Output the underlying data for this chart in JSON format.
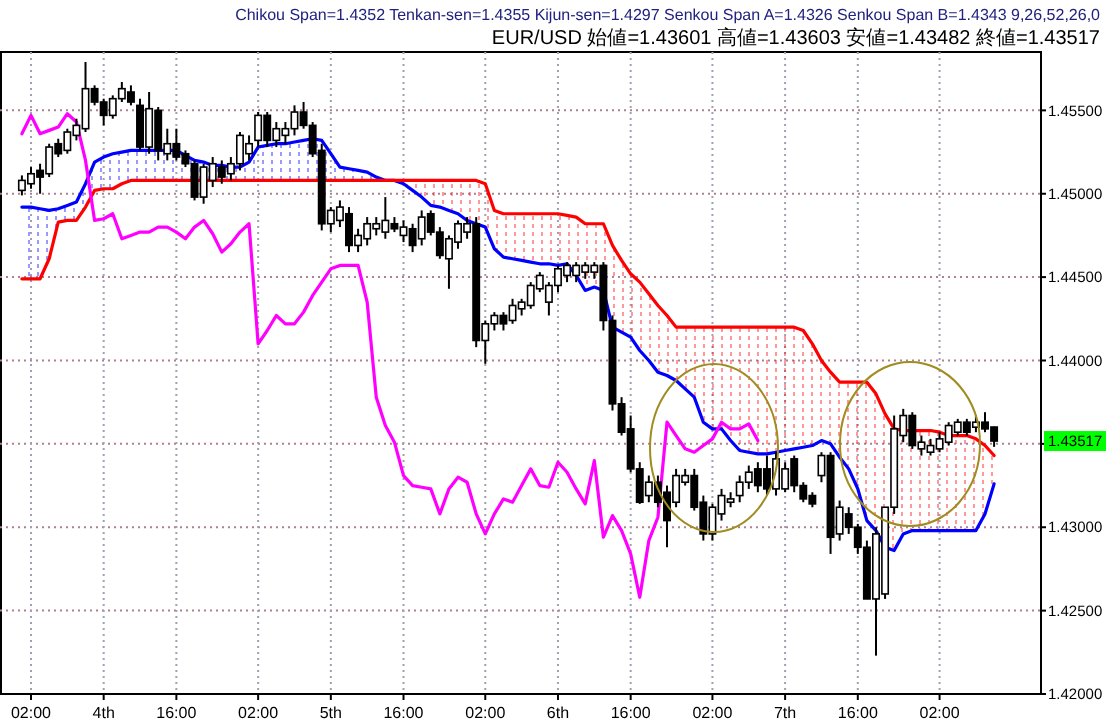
{
  "chart_data": {
    "type": "candlestick",
    "title": "Chikou Span=1.4352 Tenkan-sen=1.4355 Kijun-sen=1.4297 Senkou Span A=1.4326 Senkou Span B=1.4343 9,26,52,26,0",
    "subtitle": "EUR/USD 始値=1.43601 高値=1.43603 安値=1.43482 終値=1.43517",
    "categories": [
      null,
      "02:00",
      null,
      null,
      null,
      null,
      null,
      null,
      null,
      "4th",
      null,
      null,
      null,
      null,
      null,
      null,
      null,
      "16:00",
      null,
      null,
      null,
      null,
      null,
      null,
      null,
      null,
      "02:00",
      null,
      null,
      null,
      null,
      null,
      null,
      null,
      "5th",
      null,
      null,
      null,
      null,
      null,
      null,
      null,
      "16:00",
      null,
      null,
      null,
      null,
      null,
      null,
      null,
      null,
      "02:00",
      null,
      null,
      null,
      null,
      null,
      null,
      null,
      "6th",
      null,
      null,
      null,
      null,
      null,
      null,
      null,
      "16:00",
      null,
      null,
      null,
      null,
      null,
      null,
      null,
      null,
      "02:00",
      null,
      null,
      null,
      null,
      null,
      null,
      null,
      "7th",
      null,
      null,
      null,
      null,
      null,
      null,
      null,
      "16:00",
      null,
      null,
      null,
      null,
      null,
      null,
      null,
      null,
      "02:00",
      null,
      null,
      null,
      null,
      null,
      null
    ],
    "ohlc": [
      [
        1.4502,
        1.4511,
        1.4499,
        1.4508
      ],
      [
        1.4506,
        1.4516,
        1.4503,
        1.4512
      ],
      [
        1.4514,
        1.4518,
        1.45,
        1.451
      ],
      [
        1.4512,
        1.453,
        1.451,
        1.4528
      ],
      [
        1.453,
        1.4533,
        1.4522,
        1.4524
      ],
      [
        1.4526,
        1.4539,
        1.4524,
        1.4537
      ],
      [
        1.4535,
        1.4545,
        1.4532,
        1.4541
      ],
      [
        1.4539,
        1.4579,
        1.4537,
        1.4563
      ],
      [
        1.4563,
        1.4565,
        1.4553,
        1.4555
      ],
      [
        1.4555,
        1.4557,
        1.4541,
        1.4547
      ],
      [
        1.4547,
        1.4559,
        1.4545,
        1.4557
      ],
      [
        1.4557,
        1.4567,
        1.4555,
        1.4563
      ],
      [
        1.4561,
        1.4565,
        1.4553,
        1.4555
      ],
      [
        1.4553,
        1.4557,
        1.4526,
        1.4528
      ],
      [
        1.4528,
        1.4561,
        1.4524,
        1.4551
      ],
      [
        1.455,
        1.4552,
        1.452,
        1.4526
      ],
      [
        1.4524,
        1.4539,
        1.452,
        1.453
      ],
      [
        1.453,
        1.4539,
        1.452,
        1.4522
      ],
      [
        1.4524,
        1.4526,
        1.4516,
        1.4518
      ],
      [
        1.4518,
        1.452,
        1.4496,
        1.4498
      ],
      [
        1.4498,
        1.4518,
        1.4494,
        1.4516
      ],
      [
        1.4508,
        1.4522,
        1.4504,
        1.4518
      ],
      [
        1.4516,
        1.452,
        1.4506,
        1.451
      ],
      [
        1.4512,
        1.4522,
        1.4508,
        1.4518
      ],
      [
        1.4518,
        1.4537,
        1.4514,
        1.4535
      ],
      [
        1.4524,
        1.4535,
        1.452,
        1.453
      ],
      [
        1.4532,
        1.4549,
        1.4528,
        1.4547
      ],
      [
        1.4547,
        1.4549,
        1.4528,
        1.4532
      ],
      [
        1.4532,
        1.4543,
        1.4528,
        1.4539
      ],
      [
        1.4535,
        1.4543,
        1.453,
        1.4539
      ],
      [
        1.4539,
        1.4553,
        1.4535,
        1.4549
      ],
      [
        1.4549,
        1.4555,
        1.4539,
        1.4541
      ],
      [
        1.4541,
        1.4543,
        1.4522,
        1.4524
      ],
      [
        1.4526,
        1.453,
        1.4478,
        1.4482
      ],
      [
        1.4482,
        1.4492,
        1.4477,
        1.449
      ],
      [
        1.4484,
        1.4496,
        1.448,
        1.4492
      ],
      [
        1.4488,
        1.4492,
        1.4465,
        1.4469
      ],
      [
        1.4469,
        1.4479,
        1.4465,
        1.4475
      ],
      [
        1.4473,
        1.4486,
        1.4469,
        1.4482
      ],
      [
        1.4479,
        1.4486,
        1.4475,
        1.4482
      ],
      [
        1.4477,
        1.4498,
        1.4473,
        1.4484
      ],
      [
        1.4482,
        1.4486,
        1.4477,
        1.4479
      ],
      [
        1.4475,
        1.4484,
        1.4471,
        1.448
      ],
      [
        1.4479,
        1.4482,
        1.4465,
        1.4469
      ],
      [
        1.4473,
        1.449,
        1.4469,
        1.4486
      ],
      [
        1.4488,
        1.449,
        1.4475,
        1.4477
      ],
      [
        1.4477,
        1.448,
        1.4461,
        1.4463
      ],
      [
        1.4461,
        1.4475,
        1.4443,
        1.4473
      ],
      [
        1.4471,
        1.4484,
        1.4467,
        1.4482
      ],
      [
        1.4477,
        1.4486,
        1.4473,
        1.4482
      ],
      [
        1.4482,
        1.4486,
        1.4408,
        1.4412
      ],
      [
        1.4412,
        1.4424,
        1.4398,
        1.4422
      ],
      [
        1.4422,
        1.4429,
        1.4418,
        1.4427
      ],
      [
        1.4427,
        1.4429,
        1.4418,
        1.4422
      ],
      [
        1.4424,
        1.4437,
        1.4422,
        1.4433
      ],
      [
        1.4431,
        1.4437,
        1.4427,
        1.4435
      ],
      [
        1.4433,
        1.4447,
        1.4431,
        1.4445
      ],
      [
        1.4443,
        1.4453,
        1.4441,
        1.4451
      ],
      [
        1.4435,
        1.4447,
        1.4427,
        1.4445
      ],
      [
        1.4445,
        1.4457,
        1.4441,
        1.4455
      ],
      [
        1.4451,
        1.4459,
        1.4447,
        1.4457
      ],
      [
        1.4451,
        1.4459,
        1.4447,
        1.4457
      ],
      [
        1.4453,
        1.4459,
        1.4449,
        1.4457
      ],
      [
        1.4453,
        1.4459,
        1.4449,
        1.4457
      ],
      [
        1.4457,
        1.4459,
        1.4418,
        1.4424
      ],
      [
        1.4424,
        1.4427,
        1.437,
        1.4374
      ],
      [
        1.4374,
        1.4378,
        1.4355,
        1.4357
      ],
      [
        1.4359,
        1.4367,
        1.4333,
        1.4335
      ],
      [
        1.4335,
        1.4339,
        1.4314,
        1.4315
      ],
      [
        1.4319,
        1.4331,
        1.4315,
        1.4327
      ],
      [
        1.4327,
        1.4331,
        1.4312,
        1.4315
      ],
      [
        1.4321,
        1.4325,
        1.4288,
        1.4304
      ],
      [
        1.4315,
        1.4335,
        1.4312,
        1.4331
      ],
      [
        1.4327,
        1.4335,
        1.4325,
        1.4331
      ],
      [
        1.4331,
        1.4335,
        1.431,
        1.4312
      ],
      [
        1.4315,
        1.4319,
        1.4292,
        1.4296
      ],
      [
        1.4296,
        1.4314,
        1.4292,
        1.4312
      ],
      [
        1.4308,
        1.4323,
        1.4304,
        1.4319
      ],
      [
        1.4315,
        1.4321,
        1.4312,
        1.4317
      ],
      [
        1.4319,
        1.4331,
        1.4315,
        1.4327
      ],
      [
        1.4327,
        1.4337,
        1.4323,
        1.4333
      ],
      [
        1.4335,
        1.4339,
        1.4321,
        1.4325
      ],
      [
        1.4335,
        1.4343,
        1.4319,
        1.4323
      ],
      [
        1.4323,
        1.4345,
        1.4319,
        1.4341
      ],
      [
        1.4323,
        1.4339,
        1.4321,
        1.4335
      ],
      [
        1.4341,
        1.4343,
        1.4321,
        1.4325
      ],
      [
        1.4325,
        1.4327,
        1.4315,
        1.4317
      ],
      [
        1.4319,
        1.4321,
        1.4312,
        1.4314
      ],
      [
        1.4331,
        1.4345,
        1.4327,
        1.4343
      ],
      [
        1.4343,
        1.4345,
        1.4284,
        1.4294
      ],
      [
        1.4296,
        1.4316,
        1.4292,
        1.4312
      ],
      [
        1.4308,
        1.4312,
        1.4296,
        1.43
      ],
      [
        1.43,
        1.4302,
        1.4284,
        1.4288
      ],
      [
        1.4288,
        1.4292,
        1.4257,
        1.4257
      ],
      [
        1.4257,
        1.43,
        1.4223,
        1.4296
      ],
      [
        1.426,
        1.4312,
        1.4257,
        1.4312
      ],
      [
        1.4312,
        1.4367,
        1.4308,
        1.4359
      ],
      [
        1.4355,
        1.4371,
        1.4351,
        1.4367
      ],
      [
        1.4367,
        1.4369,
        1.4347,
        1.4349
      ],
      [
        1.4347,
        1.4355,
        1.4343,
        1.4351
      ],
      [
        1.4345,
        1.4353,
        1.4343,
        1.4349
      ],
      [
        1.4347,
        1.4357,
        1.4345,
        1.4353
      ],
      [
        1.4351,
        1.4363,
        1.4349,
        1.4361
      ],
      [
        1.4357,
        1.4365,
        1.4355,
        1.4363
      ],
      [
        1.4363,
        1.4365,
        1.4355,
        1.4357
      ],
      [
        1.436,
        1.4367,
        1.4357,
        1.4363
      ],
      [
        1.4363,
        1.4369,
        1.4357,
        1.4359
      ],
      [
        1.43601,
        1.43603,
        1.43482,
        1.43517
      ]
    ],
    "series": [
      {
        "type": "line",
        "color": "#0000ff",
        "values": [
          1.4492,
          1.4492,
          1.4491,
          1.449,
          1.4491,
          1.4493,
          1.4495,
          1.4506,
          1.4519,
          1.4522,
          1.4524,
          1.4525,
          1.4526,
          1.4526,
          1.4526,
          1.4526,
          1.4526,
          1.4526,
          1.4523,
          1.452,
          1.4519,
          1.4517,
          1.4517,
          1.4516,
          1.4516,
          1.4519,
          1.4528,
          1.4529,
          1.453,
          1.453,
          1.4531,
          1.4532,
          1.4533,
          1.4532,
          1.4524,
          1.4516,
          1.4515,
          1.4514,
          1.4513,
          1.451,
          1.4508,
          1.4508,
          1.4506,
          1.4502,
          1.4498,
          1.4493,
          1.4492,
          1.449,
          1.4488,
          1.4484,
          1.4482,
          1.448,
          1.4467,
          1.4462,
          1.4461,
          1.446,
          1.4459,
          1.4458,
          1.4458,
          1.4457,
          1.4458,
          1.4451,
          1.4442,
          1.4444,
          1.4442,
          1.442,
          1.4417,
          1.4414,
          1.4406,
          1.44,
          1.4393,
          1.4391,
          1.4388,
          1.4383,
          1.4378,
          1.4363,
          1.4359,
          1.4359,
          1.4352,
          1.4346,
          1.4345,
          1.4344,
          1.4344,
          1.4345,
          1.4346,
          1.4347,
          1.4348,
          1.4349,
          1.4352,
          1.435,
          1.4342,
          1.4335,
          1.4323,
          1.4304,
          1.4298,
          1.4288,
          1.4286,
          1.4296,
          1.4298,
          1.4298,
          1.4298,
          1.4298,
          1.4298,
          1.4298,
          1.4298,
          1.4298,
          1.4308,
          1.4326
        ],
        "upper": [
          1.4492,
          1.4492,
          1.4491,
          1.449,
          1.4491,
          1.4493,
          1.4495,
          1.4506,
          1.4519,
          1.4522,
          1.4524,
          1.4525,
          1.4526,
          1.4526,
          1.4526,
          1.4526,
          1.4526,
          1.4526,
          1.4523,
          1.452,
          1.4519,
          1.4517,
          1.4517,
          1.4516,
          1.4516,
          1.4519,
          1.4528,
          1.4529,
          1.453,
          1.453,
          1.4531,
          1.4532,
          1.4533,
          1.4532,
          1.4524,
          1.4516,
          1.4515,
          1.4514,
          1.4513,
          1.451,
          1.4508,
          null,
          null,
          null,
          null,
          null,
          null,
          null,
          null,
          null,
          null,
          null,
          null,
          null,
          null,
          null,
          null,
          null,
          null,
          null,
          null,
          null,
          null,
          null,
          null,
          null,
          null,
          null,
          null,
          null,
          null,
          null,
          null,
          null,
          null,
          null,
          null,
          null,
          null,
          null,
          null,
          null,
          null,
          null,
          null,
          null,
          null,
          null,
          null,
          null,
          null,
          null,
          null,
          null,
          null,
          null,
          null,
          null,
          null,
          null,
          null,
          null,
          null,
          null,
          null,
          null,
          null,
          null
        ],
        "lower": [
          1.4449,
          1.4449,
          1.4449,
          1.4461,
          1.4483,
          1.4484,
          1.4484,
          1.4492,
          1.4502,
          1.4503,
          1.4503,
          1.4506,
          1.4508,
          1.4508,
          1.4508,
          1.4508,
          1.4508,
          1.4508,
          1.4508,
          1.4508,
          1.4508,
          1.4508,
          1.4508,
          1.4508,
          1.4508,
          1.4508,
          1.4508,
          1.4508,
          1.4508,
          1.4508,
          1.4508,
          1.4508,
          1.4508,
          1.4508,
          1.4508,
          1.4508,
          1.4508,
          1.4508,
          1.4508,
          1.4508,
          1.4508,
          null,
          null,
          null,
          null,
          null,
          null,
          null,
          null,
          null,
          null,
          null,
          null,
          null,
          null,
          null,
          null,
          null,
          null,
          null,
          null,
          null,
          null,
          null,
          null,
          null,
          null,
          null,
          null,
          null,
          null,
          null,
          null,
          null,
          null,
          null,
          null,
          null,
          null,
          null,
          null,
          null,
          null,
          null,
          null,
          null,
          null,
          null,
          null,
          null,
          null,
          null,
          null,
          null,
          null,
          null,
          null,
          null,
          null,
          null,
          null,
          null,
          null,
          null,
          null,
          null,
          null,
          null
        ]
      },
      {
        "type": "line",
        "color": "#ff0000",
        "values": [
          1.4449,
          1.4449,
          1.4449,
          1.4461,
          1.4483,
          1.4484,
          1.4484,
          1.4492,
          1.4502,
          1.4503,
          1.4503,
          1.4506,
          1.4508,
          1.4508,
          1.4508,
          1.4508,
          1.4508,
          1.4508,
          1.4508,
          1.4508,
          1.4508,
          1.4508,
          1.4508,
          1.4508,
          1.4508,
          1.4508,
          1.4508,
          1.4508,
          1.4508,
          1.4508,
          1.4508,
          1.4508,
          1.4508,
          1.4508,
          1.4508,
          1.4508,
          1.4508,
          1.4508,
          1.4508,
          1.4508,
          1.4508,
          1.4508,
          1.4508,
          1.4508,
          1.4508,
          1.4508,
          1.4508,
          1.4508,
          1.4508,
          1.4508,
          1.4508,
          1.4506,
          1.449,
          1.4488,
          1.4488,
          1.4488,
          1.4488,
          1.4488,
          1.4488,
          1.4488,
          1.4487,
          1.4486,
          1.4482,
          1.4482,
          1.4482,
          1.4469,
          1.446,
          1.4452,
          1.4447,
          1.444,
          1.4433,
          1.4427,
          1.442,
          1.442,
          1.442,
          1.442,
          1.442,
          1.442,
          1.442,
          1.442,
          1.442,
          1.442,
          1.442,
          1.442,
          1.442,
          1.442,
          1.4418,
          1.441,
          1.44,
          1.4393,
          1.4387,
          1.4387,
          1.4387,
          1.4387,
          1.438,
          1.4368,
          1.4359,
          1.4358,
          1.4358,
          1.4358,
          1.4358,
          1.4357,
          1.4355,
          1.4355,
          1.4355,
          1.4353,
          1.4349,
          1.4343
        ],
        "upper": [
          null,
          null,
          null,
          null,
          null,
          null,
          null,
          null,
          null,
          null,
          null,
          null,
          null,
          null,
          null,
          null,
          null,
          null,
          null,
          null,
          null,
          null,
          null,
          null,
          null,
          null,
          null,
          null,
          null,
          null,
          null,
          null,
          null,
          null,
          null,
          null,
          null,
          null,
          null,
          null,
          null,
          1.4508,
          1.4508,
          1.4508,
          1.4508,
          1.4508,
          1.4508,
          1.4508,
          1.4508,
          1.4508,
          1.4508,
          1.4506,
          1.449,
          1.4488,
          1.4488,
          1.4488,
          1.4488,
          1.4488,
          1.4488,
          1.4488,
          1.4487,
          1.4486,
          1.4482,
          1.4482,
          1.4482,
          1.4469,
          1.446,
          1.4452,
          1.4447,
          1.444,
          1.4433,
          1.4427,
          1.442,
          1.442,
          1.442,
          1.442,
          1.442,
          1.442,
          1.442,
          1.442,
          1.442,
          1.442,
          1.442,
          1.442,
          1.442,
          1.442,
          1.4418,
          1.441,
          1.44,
          1.4393,
          1.4387,
          1.4387,
          1.4387,
          1.4387,
          1.438,
          1.4368,
          1.4359,
          1.4358,
          1.4358,
          1.4358,
          1.4358,
          1.4357,
          1.4355,
          1.4355,
          1.4355,
          1.4353,
          1.4349,
          1.4343
        ],
        "lower": [
          null,
          null,
          null,
          null,
          null,
          null,
          null,
          null,
          null,
          null,
          null,
          null,
          null,
          null,
          null,
          null,
          null,
          null,
          null,
          null,
          null,
          null,
          null,
          null,
          null,
          null,
          null,
          null,
          null,
          null,
          null,
          null,
          null,
          null,
          null,
          null,
          null,
          null,
          null,
          null,
          null,
          1.4508,
          1.4506,
          1.4502,
          1.4498,
          1.4493,
          1.4492,
          1.449,
          1.4488,
          1.4484,
          1.4482,
          1.448,
          1.4467,
          1.4462,
          1.4461,
          1.446,
          1.4459,
          1.4458,
          1.4458,
          1.4457,
          1.4458,
          1.4451,
          1.4442,
          1.4444,
          1.4442,
          1.442,
          1.4417,
          1.4414,
          1.4406,
          1.44,
          1.4393,
          1.4391,
          1.4388,
          1.4383,
          1.4378,
          1.4363,
          1.4359,
          1.4359,
          1.4352,
          1.4346,
          1.4345,
          1.4344,
          1.4344,
          1.4345,
          1.4346,
          1.4347,
          1.4348,
          1.4349,
          1.4352,
          1.435,
          1.4342,
          1.4335,
          1.4323,
          1.4304,
          1.4298,
          1.4288,
          1.4286,
          1.4296,
          1.4298,
          1.4298,
          1.4298,
          1.4298,
          1.4298,
          1.4298,
          1.4298,
          1.4298,
          1.4308,
          1.4326
        ]
      },
      {
        "type": "line",
        "color": "#ff00ff",
        "values": [
          1.4536,
          1.4547,
          1.4536,
          1.4538,
          1.454,
          1.4548,
          1.4543,
          1.452,
          1.4484,
          1.4485,
          1.4488,
          1.4473,
          1.4475,
          1.4477,
          1.4477,
          1.448,
          1.448,
          1.4477,
          1.4473,
          1.448,
          1.4484,
          1.4476,
          1.4465,
          1.447,
          1.4477,
          1.4482,
          1.441,
          1.4418,
          1.4427,
          1.4422,
          1.4422,
          1.4429,
          1.4439,
          1.4447,
          1.4455,
          1.4457,
          1.4457,
          1.4457,
          1.4435,
          1.4378,
          1.4361,
          1.4351,
          1.4331,
          1.4325,
          1.4324,
          1.4323,
          1.4308,
          1.4323,
          1.433,
          1.4327,
          1.4308,
          1.4296,
          1.4308,
          1.4317,
          1.4315,
          1.4325,
          1.4335,
          1.4325,
          1.4324,
          1.4339,
          1.4333,
          1.4323,
          1.4314,
          1.434,
          1.4294,
          1.4307,
          1.4298,
          1.4284,
          1.4258,
          1.4292,
          1.4306,
          1.4363,
          1.4355,
          1.4347,
          1.4345,
          1.4349,
          1.4353,
          1.4363,
          1.4359,
          1.4359,
          1.4362,
          1.4352,
          null,
          null,
          null,
          null,
          null,
          null,
          null,
          null,
          null,
          null,
          null,
          null,
          null,
          null,
          null,
          null,
          null,
          null,
          null,
          null,
          null,
          null,
          null,
          null,
          null,
          null
        ]
      }
    ],
    "ylim": [
      1.42,
      1.4585
    ],
    "yticks": [
      {
        "value": 1.42,
        "label": "1.42000"
      },
      {
        "value": 1.425,
        "label": "1.42500"
      },
      {
        "value": 1.43,
        "label": "1.43000"
      },
      {
        "value": 1.435,
        "label": null
      },
      {
        "value": 1.44,
        "label": "1.44000"
      },
      {
        "value": 1.445,
        "label": "1.44500"
      },
      {
        "value": 1.45,
        "label": "1.45000"
      },
      {
        "value": 1.455,
        "label": "1.45500"
      }
    ],
    "annotations": [
      "1.43517"
    ],
    "grid": true
  }
}
